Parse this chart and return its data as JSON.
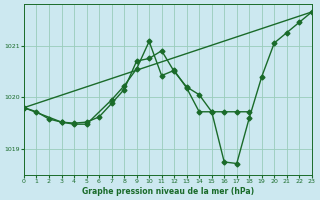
{
  "background_color": "#cce8f0",
  "plot_bg_color": "#cce8f0",
  "grid_color": "#99ccbb",
  "line_color": "#1a6b2a",
  "xlabel": "Graphe pression niveau de la mer (hPa)",
  "ylim": [
    1018.5,
    1021.8
  ],
  "xlim": [
    0,
    23
  ],
  "yticks": [
    1019,
    1020,
    1021
  ],
  "xticks": [
    0,
    1,
    2,
    3,
    4,
    5,
    6,
    7,
    8,
    9,
    10,
    11,
    12,
    13,
    14,
    15,
    16,
    17,
    18,
    19,
    20,
    21,
    22,
    23
  ],
  "series1_x": [
    0,
    1,
    2,
    3,
    4,
    5,
    6,
    7,
    8,
    9,
    10,
    11,
    12,
    13,
    14,
    15,
    16,
    17,
    18,
    19,
    20,
    21,
    22,
    23
  ],
  "series1_y": [
    1019.8,
    1019.72,
    1019.58,
    1019.52,
    1019.5,
    1019.52,
    1019.62,
    1019.88,
    1020.15,
    1020.7,
    1020.75,
    1020.9,
    1020.5,
    1020.2,
    1020.05,
    1019.72,
    1018.75,
    1018.72,
    1019.6,
    1020.4,
    1021.05,
    1021.25,
    1021.45,
    1021.65
  ],
  "series2_x": [
    0,
    3,
    4,
    5,
    7,
    8,
    9,
    10,
    11,
    12,
    13,
    14,
    15,
    16,
    17,
    18
  ],
  "series2_y": [
    1019.8,
    1019.52,
    1019.48,
    1019.48,
    1019.95,
    1020.22,
    1020.55,
    1021.08,
    1020.42,
    1020.52,
    1020.18,
    1019.72,
    1019.72,
    1019.72,
    1019.72,
    1019.72
  ],
  "series3_x": [
    0,
    23
  ],
  "series3_y": [
    1019.8,
    1021.65
  ],
  "marker": "D",
  "markersize": 2.5,
  "linewidth": 1.0
}
